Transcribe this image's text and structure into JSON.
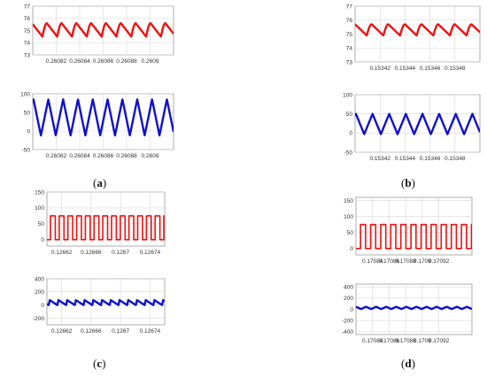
{
  "panels": [
    {
      "label_open": "(",
      "label_letter": "a",
      "label_close": ")"
    },
    {
      "label_open": "(",
      "label_letter": "b",
      "label_close": ")"
    },
    {
      "label_open": "(",
      "label_letter": "c",
      "label_close": ")"
    },
    {
      "label_open": "(",
      "label_letter": "d",
      "label_close": ")"
    }
  ],
  "chart_data": [
    {
      "id": "a-top",
      "panel": "a",
      "type": "line",
      "color": "#ee1111",
      "xlim": [
        0.2608,
        0.26092
      ],
      "ylim": [
        73,
        77
      ],
      "x_ticks": [
        0.26082,
        0.26084,
        0.26086,
        0.26088,
        0.2609
      ],
      "x_tick_labels": [
        "0.26082",
        "0.26084",
        "0.26086",
        "0.26088",
        "0.2609"
      ],
      "y_ticks": [
        73,
        74,
        75,
        76,
        77
      ],
      "y_tick_labels": [
        "73",
        "74",
        "75",
        "76",
        "77"
      ],
      "grid": true,
      "waveform": {
        "shape": "ripple",
        "periods": 9.5,
        "min": 74.5,
        "max": 75.6,
        "start_phase": 0.35
      }
    },
    {
      "id": "a-bottom",
      "panel": "a",
      "type": "line",
      "color": "#1010cc",
      "xlim": [
        0.2608,
        0.26092
      ],
      "ylim": [
        -50,
        100
      ],
      "x_ticks": [
        0.26082,
        0.26084,
        0.26086,
        0.26088,
        0.2609
      ],
      "x_tick_labels": [
        "0.26082",
        "0.26084",
        "0.26086",
        "0.26088",
        "0.2609"
      ],
      "y_ticks": [
        -50,
        0,
        50,
        100
      ],
      "y_tick_labels": [
        "-50",
        "0",
        "50",
        "100"
      ],
      "grid": true,
      "waveform": {
        "shape": "triangle",
        "periods": 9.5,
        "min": -12,
        "max": 85,
        "start_phase": 0.45
      }
    },
    {
      "id": "b-top",
      "panel": "b",
      "type": "line",
      "color": "#ee1111",
      "xlim": [
        0.1534,
        0.1535
      ],
      "ylim": [
        73,
        77
      ],
      "x_ticks": [
        0.15342,
        0.15344,
        0.15346,
        0.15348
      ],
      "x_tick_labels": [
        "0.15342",
        "0.15344",
        "0.15346",
        "0.15348"
      ],
      "y_ticks": [
        73,
        74,
        75,
        76,
        77
      ],
      "y_tick_labels": [
        "73",
        "74",
        "75",
        "76",
        "77"
      ],
      "grid": true,
      "waveform": {
        "shape": "ripple",
        "periods": 7.5,
        "min": 74.9,
        "max": 75.7,
        "start_phase": 0.3
      }
    },
    {
      "id": "b-bottom",
      "panel": "b",
      "type": "line",
      "color": "#1010cc",
      "xlim": [
        0.1534,
        0.1535
      ],
      "ylim": [
        -50,
        100
      ],
      "x_ticks": [
        0.15342,
        0.15344,
        0.15346,
        0.15348
      ],
      "x_tick_labels": [
        "0.15342",
        "0.15344",
        "0.15346",
        "0.15348"
      ],
      "y_ticks": [
        -50,
        0,
        50,
        100
      ],
      "y_tick_labels": [
        "-50",
        "0",
        "50",
        "100"
      ],
      "grid": true,
      "waveform": {
        "shape": "triangle",
        "periods": 7.5,
        "min": -3,
        "max": 50,
        "start_phase": 0.45
      }
    },
    {
      "id": "c-top",
      "panel": "c",
      "type": "line",
      "color": "#ee1111",
      "xlim": [
        0.1266,
        0.12676
      ],
      "ylim": [
        -20,
        150
      ],
      "x_ticks": [
        0.12662,
        0.12666,
        0.1267,
        0.12674
      ],
      "x_tick_labels": [
        "0.12662",
        "0.12666",
        "0.1267",
        "0.12674"
      ],
      "y_ticks": [
        0,
        50,
        100,
        150
      ],
      "y_tick_labels": [
        "0",
        "50",
        "100",
        "150"
      ],
      "grid": true,
      "waveform": {
        "shape": "square",
        "periods": 13.5,
        "min": 0,
        "max": 75,
        "duty": 0.55,
        "start_phase": 0.6
      }
    },
    {
      "id": "c-bottom",
      "panel": "c",
      "type": "line",
      "color": "#1010cc",
      "xlim": [
        0.1266,
        0.12676
      ],
      "ylim": [
        -300,
        400
      ],
      "x_ticks": [
        0.12662,
        0.12666,
        0.1267,
        0.12674
      ],
      "x_tick_labels": [
        "0.12662",
        "0.12666",
        "0.1267",
        "0.12674"
      ],
      "y_ticks": [
        -200,
        0,
        200,
        400
      ],
      "y_tick_labels": [
        "-200",
        "0",
        "200",
        "400"
      ],
      "grid": true,
      "waveform": {
        "shape": "sawtooth",
        "periods": 13.5,
        "min": 0,
        "max": 75,
        "start_phase": 0.8
      }
    },
    {
      "id": "d-top",
      "panel": "d",
      "type": "line",
      "color": "#ee1111",
      "xlim": [
        0.17082,
        0.17096
      ],
      "ylim": [
        -20,
        160
      ],
      "x_ticks": [
        0.17084,
        0.17086,
        0.17088,
        0.1709,
        0.17092
      ],
      "x_tick_labels": [
        "0.17084",
        "0.17086",
        "0.17088",
        "0.1709",
        "0.17092"
      ],
      "y_ticks": [
        0,
        50,
        100,
        150
      ],
      "y_tick_labels": [
        "0",
        "50",
        "100",
        "150"
      ],
      "grid": true,
      "waveform": {
        "shape": "square",
        "periods": 11.5,
        "min": 0,
        "max": 75,
        "duty": 0.5,
        "start_phase": 0.55
      }
    },
    {
      "id": "d-bottom",
      "panel": "d",
      "type": "line",
      "color": "#1010cc",
      "xlim": [
        0.17082,
        0.17096
      ],
      "ylim": [
        -450,
        450
      ],
      "x_ticks": [
        0.17084,
        0.17086,
        0.17088,
        0.1709,
        0.17092
      ],
      "x_tick_labels": [
        "0.17084",
        "0.17086",
        "0.17088",
        "0.1709",
        "0.17092"
      ],
      "y_ticks": [
        -400,
        -200,
        0,
        200,
        400
      ],
      "y_tick_labels": [
        "-400",
        "-200",
        "0",
        "200",
        "400"
      ],
      "grid": true,
      "waveform": {
        "shape": "triangle",
        "periods": 11.5,
        "min": 5,
        "max": 45,
        "start_phase": 0.5
      }
    }
  ]
}
